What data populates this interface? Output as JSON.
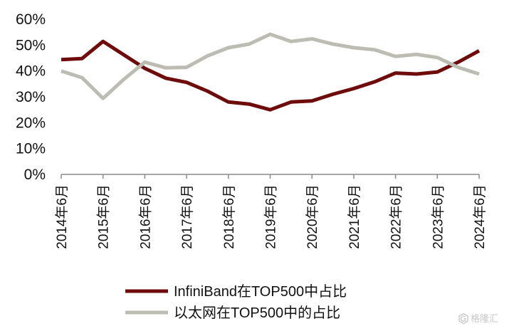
{
  "chart_data": {
    "type": "line",
    "title": "",
    "xlabel": "",
    "ylabel": "",
    "ylim": [
      0,
      60
    ],
    "y_ticks": [
      "0%",
      "10%",
      "20%",
      "30%",
      "40%",
      "50%",
      "60%"
    ],
    "x_tick_labels": [
      "2014年6月",
      "2015年6月",
      "2016年6月",
      "2017年6月",
      "2018年6月",
      "2019年6月",
      "2020年6月",
      "2021年6月",
      "2022年6月",
      "2023年6月",
      "2024年6月"
    ],
    "x": [
      "2014-06",
      "2014-11",
      "2015-06",
      "2015-11",
      "2016-06",
      "2016-11",
      "2017-06",
      "2017-11",
      "2018-06",
      "2018-11",
      "2019-06",
      "2019-11",
      "2020-06",
      "2020-11",
      "2021-06",
      "2021-11",
      "2022-06",
      "2022-11",
      "2023-06",
      "2023-11",
      "2024-06"
    ],
    "grid": false,
    "legend_position": "bottom",
    "series": [
      {
        "name": "InfiniBand在TOP500中占比",
        "color": "#6e0b0b",
        "values": [
          44.4,
          44.8,
          51.4,
          46.2,
          41.0,
          37.2,
          35.6,
          32.2,
          28.0,
          27.2,
          25.0,
          28.0,
          28.4,
          31.0,
          33.2,
          35.8,
          39.2,
          38.8,
          39.6,
          43.4,
          47.8
        ]
      },
      {
        "name": "以太网在TOP500中的占比",
        "color": "#bdbcb3",
        "values": [
          40.0,
          37.4,
          29.4,
          36.8,
          43.4,
          41.2,
          41.4,
          45.8,
          49.0,
          50.4,
          54.2,
          51.4,
          52.4,
          50.4,
          49.0,
          48.2,
          45.6,
          46.4,
          45.2,
          41.4,
          38.8
        ]
      }
    ]
  },
  "watermark": {
    "text": "格隆汇",
    "icon": "hexagon-g-icon",
    "color": "#c8c8c8"
  }
}
